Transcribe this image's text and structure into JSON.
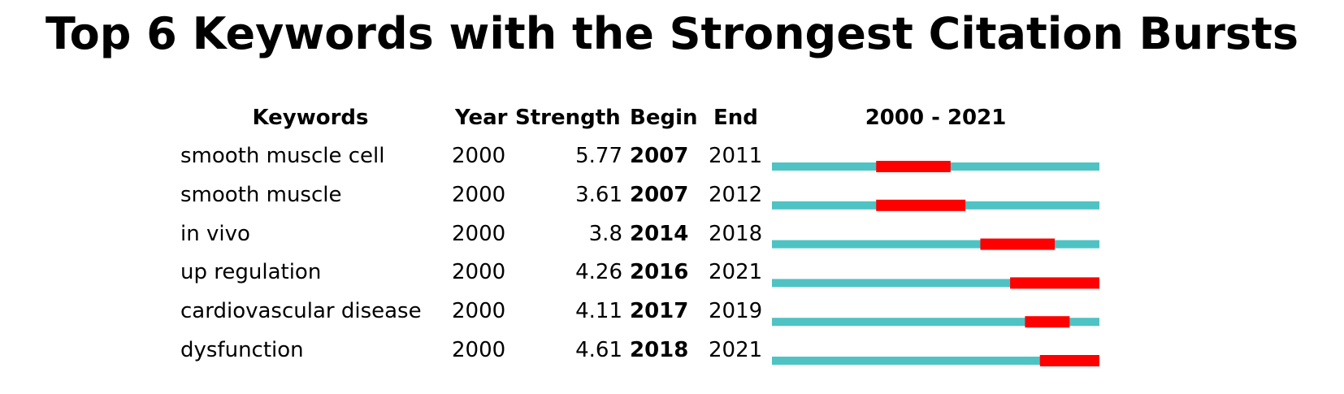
{
  "title": "Top 6 Keywords with the Strongest Citation Bursts",
  "headers": {
    "keywords": "Keywords",
    "year": "Year",
    "strength": "Strength",
    "begin": "Begin",
    "end": "End",
    "range": "2000 - 2021"
  },
  "colors": {
    "baseline": "#4fc3c3",
    "burst": "#ff0000"
  },
  "chart_data": {
    "type": "table",
    "title": "Top 6 Keywords with the Strongest Citation Bursts",
    "timeline_range": [
      2000,
      2021
    ],
    "columns": [
      "Keywords",
      "Year",
      "Strength",
      "Begin",
      "End",
      "2000 - 2021"
    ],
    "rows": [
      {
        "keyword": "smooth muscle cell",
        "year": "2000",
        "strength": "5.77",
        "begin": "2007",
        "end": "2011"
      },
      {
        "keyword": "smooth muscle",
        "year": "2000",
        "strength": "3.61",
        "begin": "2007",
        "end": "2012"
      },
      {
        "keyword": "in vivo",
        "year": "2000",
        "strength": "3.8",
        "begin": "2014",
        "end": "2018"
      },
      {
        "keyword": "up regulation",
        "year": "2000",
        "strength": "4.26",
        "begin": "2016",
        "end": "2021"
      },
      {
        "keyword": "cardiovascular disease",
        "year": "2000",
        "strength": "4.11",
        "begin": "2017",
        "end": "2019"
      },
      {
        "keyword": "dysfunction",
        "year": "2000",
        "strength": "4.61",
        "begin": "2018",
        "end": "2021"
      }
    ]
  }
}
